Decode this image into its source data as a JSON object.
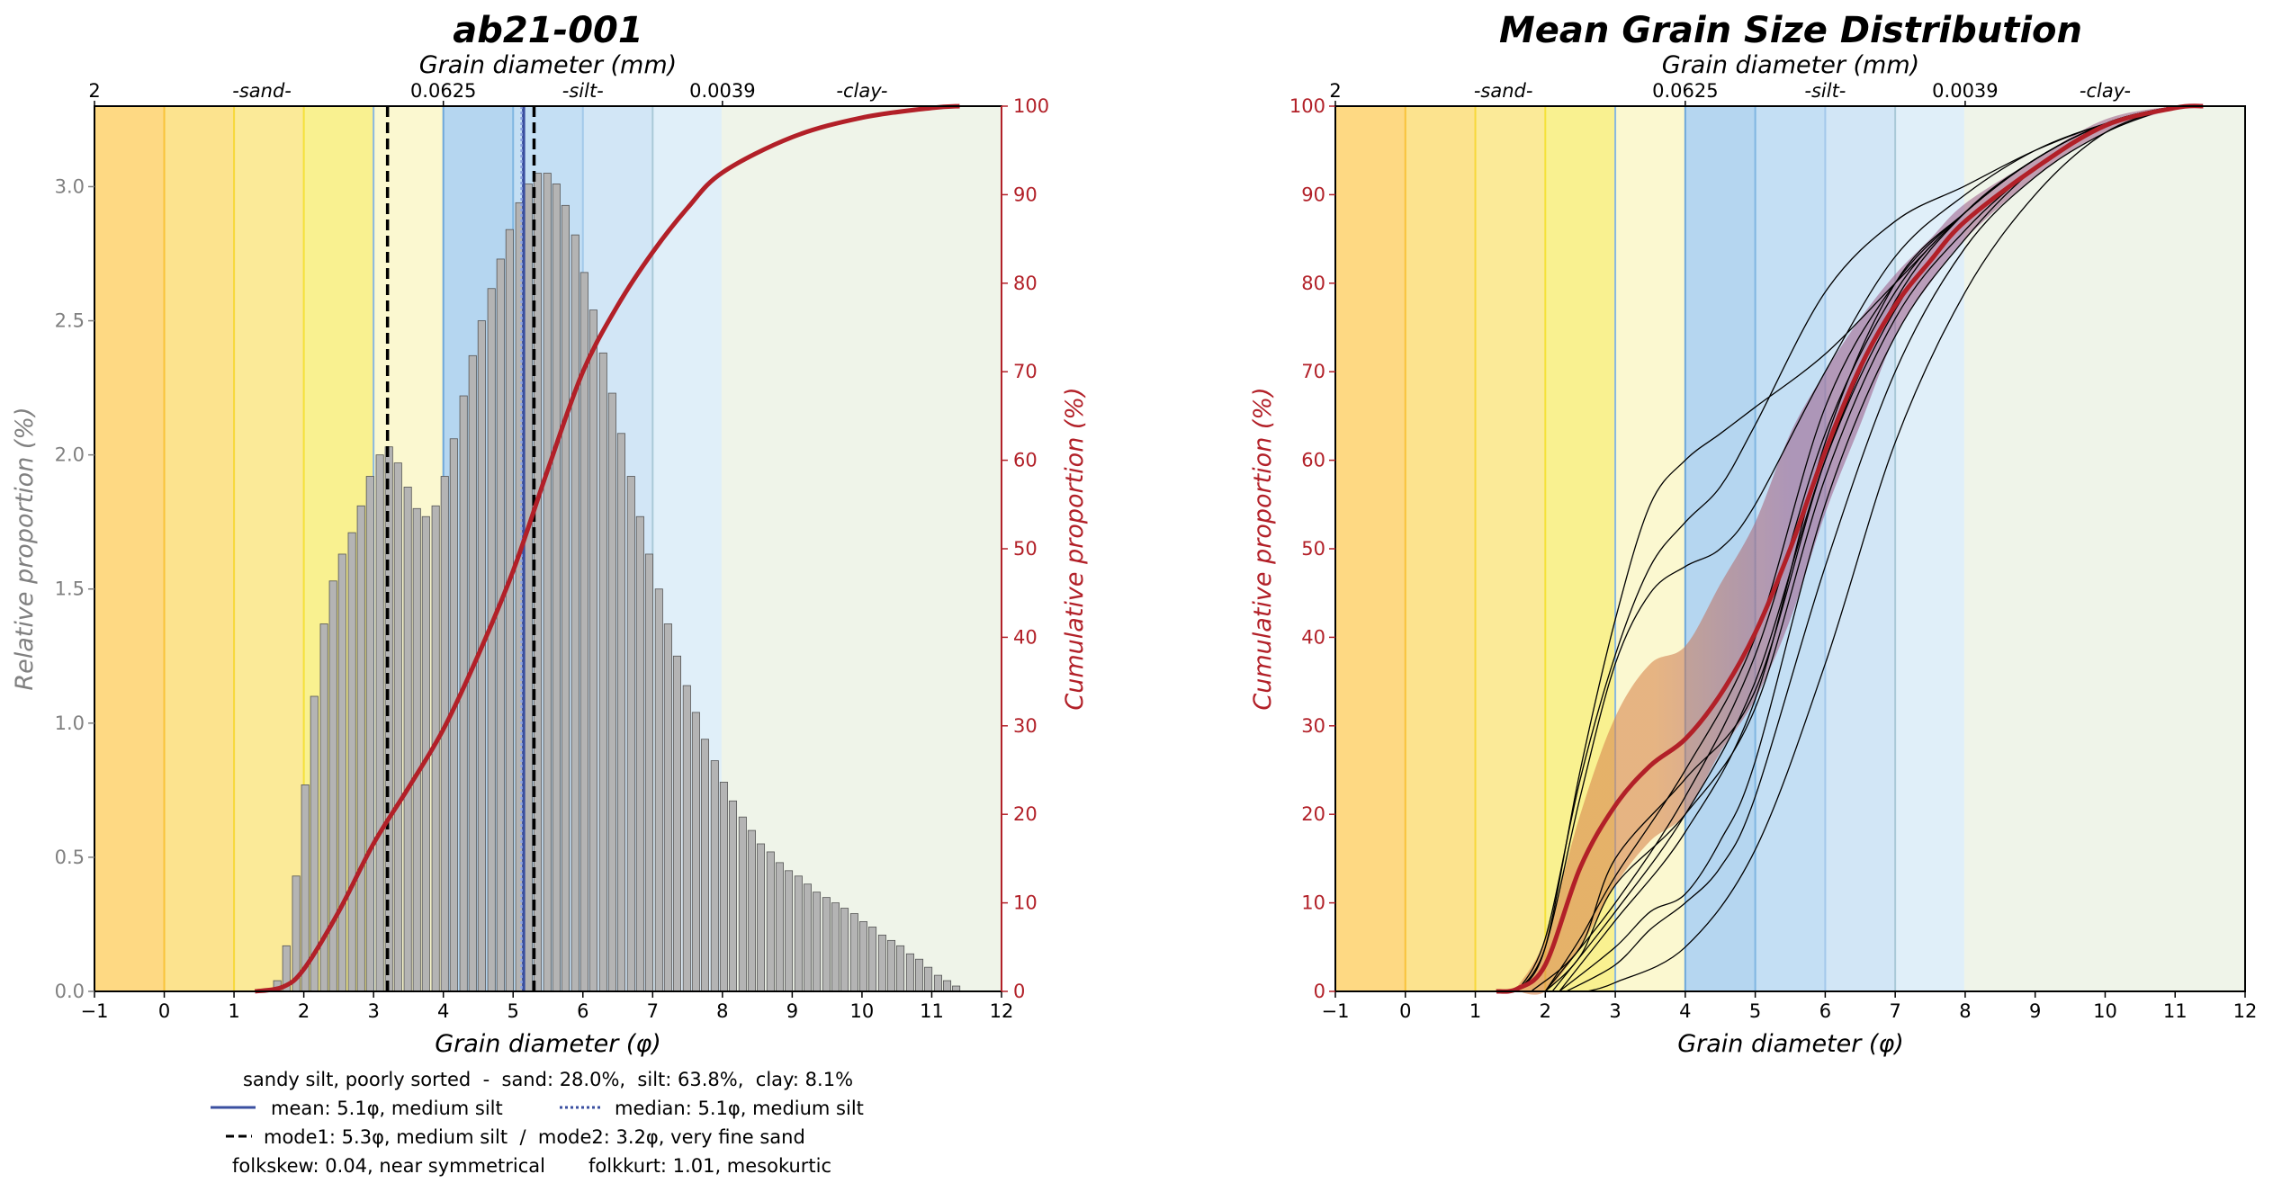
{
  "colors": {
    "cumulative": "#b22028",
    "relative_axis": "#808080",
    "bar_fill": "#b4b4b4",
    "bar_edge": "#555555",
    "mean_line": "#3a4fa0",
    "median_line": "#3a4fa0",
    "mode_line": "#000000",
    "band_sand": "#d8874f",
    "band_silt": "#9a5a86",
    "sample_lines": "#000000",
    "size_classes": [
      {
        "from": -1,
        "to": 0,
        "fill": "#fed983",
        "edge": "#f9c33a"
      },
      {
        "from": 0,
        "to": 1,
        "fill": "#fce38e",
        "edge": "#f9c33a"
      },
      {
        "from": 1,
        "to": 2,
        "fill": "#fbea98",
        "edge": "#f7d83a"
      },
      {
        "from": 2,
        "to": 3,
        "fill": "#f9f190",
        "edge": "#f5e13a"
      },
      {
        "from": 3,
        "to": 4,
        "fill": "#fbf8d0",
        "edge": "#8ab8e0"
      },
      {
        "from": 4,
        "to": 5,
        "fill": "#b5d6f0",
        "edge": "#6fa8d9"
      },
      {
        "from": 5,
        "to": 6,
        "fill": "#c4dff4",
        "edge": "#80b6e2"
      },
      {
        "from": 6,
        "to": 7,
        "fill": "#d2e6f6",
        "edge": "#a3c9ea"
      },
      {
        "from": 7,
        "to": 8,
        "fill": "#e0eff9",
        "edge": "#a9c9d8"
      },
      {
        "from": 8,
        "to": 12,
        "fill": "#eff4e9",
        "edge": "#eff4e9"
      }
    ]
  },
  "chart_data": [
    {
      "type": "bar",
      "title": "ab21-001",
      "xlabel": "Grain diameter (φ)",
      "ylabel": "Relative proportion (%)",
      "y2label": "Cumulative proportion (%)",
      "top_axis_label": "Grain diameter (mm)",
      "top_axis_labels": [
        {
          "phi": -1,
          "text": "2",
          "italic": false
        },
        {
          "phi": 1.4,
          "text": "-sand-",
          "italic": true
        },
        {
          "phi": 4,
          "text": "0.0625",
          "italic": false
        },
        {
          "phi": 6,
          "text": "-silt-",
          "italic": true
        },
        {
          "phi": 8,
          "text": "0.0039",
          "italic": false
        },
        {
          "phi": 10,
          "text": "-clay-",
          "italic": true
        }
      ],
      "xlim": [
        -1,
        12
      ],
      "ylim": [
        0,
        3.3
      ],
      "y2lim": [
        0,
        100
      ],
      "xticks": [
        "−1",
        "0",
        "1",
        "2",
        "3",
        "4",
        "5",
        "6",
        "7",
        "8",
        "9",
        "10",
        "11",
        "12"
      ],
      "yticks": [
        "0.0",
        "0.5",
        "1.0",
        "1.5",
        "2.0",
        "2.5",
        "3.0"
      ],
      "y2ticks": [
        "0",
        "10",
        "20",
        "30",
        "40",
        "50",
        "60",
        "70",
        "80",
        "90",
        "100"
      ],
      "bars": {
        "x": [
          1.62,
          1.75,
          1.89,
          2.02,
          2.15,
          2.29,
          2.42,
          2.55,
          2.69,
          2.82,
          2.95,
          3.09,
          3.22,
          3.35,
          3.49,
          3.62,
          3.75,
          3.89,
          4.02,
          4.15,
          4.29,
          4.42,
          4.55,
          4.69,
          4.82,
          4.95,
          5.09,
          5.22,
          5.35,
          5.49,
          5.62,
          5.75,
          5.89,
          6.02,
          6.15,
          6.29,
          6.42,
          6.55,
          6.69,
          6.82,
          6.95,
          7.09,
          7.22,
          7.35,
          7.49,
          7.62,
          7.75,
          7.89,
          8.02,
          8.15,
          8.29,
          8.42,
          8.55,
          8.69,
          8.82,
          8.95,
          9.09,
          9.22,
          9.35,
          9.49,
          9.62,
          9.75,
          9.89,
          10.02,
          10.15,
          10.29,
          10.42,
          10.55,
          10.69,
          10.82,
          10.95,
          11.09,
          11.22,
          11.35
        ],
        "values": [
          0.04,
          0.17,
          0.43,
          0.77,
          1.1,
          1.37,
          1.53,
          1.63,
          1.71,
          1.81,
          1.92,
          2.0,
          2.03,
          1.97,
          1.88,
          1.8,
          1.77,
          1.81,
          1.92,
          2.06,
          2.22,
          2.37,
          2.5,
          2.62,
          2.73,
          2.84,
          2.94,
          3.01,
          3.05,
          3.05,
          3.01,
          2.93,
          2.82,
          2.68,
          2.54,
          2.38,
          2.23,
          2.08,
          1.92,
          1.77,
          1.63,
          1.5,
          1.37,
          1.25,
          1.14,
          1.04,
          0.94,
          0.86,
          0.78,
          0.71,
          0.65,
          0.6,
          0.55,
          0.52,
          0.48,
          0.45,
          0.43,
          0.4,
          0.37,
          0.35,
          0.33,
          0.31,
          0.29,
          0.26,
          0.24,
          0.21,
          0.19,
          0.17,
          0.14,
          0.12,
          0.09,
          0.06,
          0.04,
          0.02
        ]
      },
      "cumulative": {
        "x": [
          1.3,
          1.7,
          2,
          2.5,
          3,
          3.5,
          4,
          4.5,
          5,
          5.5,
          6,
          6.5,
          7,
          7.5,
          8,
          9,
          10,
          11,
          11.4
        ],
        "y": [
          0,
          0.5,
          2.5,
          9,
          16.7,
          23,
          29.6,
          38,
          47.5,
          59,
          70,
          77.5,
          83.5,
          88.5,
          92.5,
          96.5,
          98.7,
          99.8,
          100
        ]
      },
      "markers": {
        "mean": 5.15,
        "median": 5.12,
        "mode1": 5.3,
        "mode2": 3.2
      },
      "stats": {
        "summary": "sandy silt, poorly sorted  -  sand: 28.0%,  silt: 63.8%,  clay: 8.1%",
        "mean": "mean: 5.1φ, medium silt",
        "median": "median: 5.1φ, medium silt",
        "modes": "mode1: 5.3φ, medium silt  /  mode2: 3.2φ, very fine sand",
        "skew": "folkskew: 0.04, near symmetrical",
        "kurt": "folkkurt: 1.01, mesokurtic"
      }
    },
    {
      "type": "line",
      "title": "Mean Grain Size Distribution",
      "xlabel": "Grain diameter (φ)",
      "ylabel": "Cumulative proportion (%)",
      "top_axis_label": "Grain diameter (mm)",
      "top_axis_labels": [
        {
          "phi": -1,
          "text": "2",
          "italic": false
        },
        {
          "phi": 1.4,
          "text": "-sand-",
          "italic": true
        },
        {
          "phi": 4,
          "text": "0.0625",
          "italic": false
        },
        {
          "phi": 6,
          "text": "-silt-",
          "italic": true
        },
        {
          "phi": 8,
          "text": "0.0039",
          "italic": false
        },
        {
          "phi": 10,
          "text": "-clay-",
          "italic": true
        }
      ],
      "xlim": [
        -1,
        12
      ],
      "ylim": [
        0,
        100
      ],
      "xticks": [
        "−1",
        "0",
        "1",
        "2",
        "3",
        "4",
        "5",
        "6",
        "7",
        "8",
        "9",
        "10",
        "11",
        "12"
      ],
      "yticks": [
        "0",
        "10",
        "20",
        "30",
        "40",
        "50",
        "60",
        "70",
        "80",
        "90",
        "100"
      ],
      "mean": {
        "x": [
          1.3,
          1.6,
          2,
          2.5,
          3,
          3.5,
          4,
          4.5,
          5,
          5.5,
          6,
          6.5,
          7,
          7.5,
          8,
          9,
          10,
          11,
          11.4
        ],
        "y": [
          0,
          0.3,
          3,
          14,
          21,
          25.5,
          28.5,
          33.5,
          40.5,
          50,
          61,
          70.5,
          77.5,
          82.5,
          87,
          93,
          97.8,
          99.8,
          100
        ]
      },
      "band": {
        "x": [
          1.6,
          2,
          2.5,
          3,
          3.5,
          4,
          4.5,
          5,
          5.5,
          6,
          6.5,
          7,
          7.5,
          8,
          9,
          10,
          11,
          11.4
        ],
        "lower": [
          0,
          0,
          5,
          12,
          17,
          20,
          27,
          33,
          42,
          54,
          64,
          74,
          80,
          85,
          92,
          97,
          99.7,
          100
        ],
        "upper": [
          0.5,
          6,
          20,
          31,
          37,
          39,
          46,
          53,
          63,
          70,
          76,
          81,
          85,
          89,
          94,
          98.5,
          100,
          100
        ]
      },
      "samples": [
        {
          "x": [
            1.6,
            2,
            2.5,
            3,
            3.5,
            4,
            4.5,
            5,
            6,
            7,
            8,
            9,
            10,
            11
          ],
          "y": [
            0,
            5,
            25,
            42,
            55,
            60,
            63,
            66,
            72,
            80,
            88,
            94,
            98,
            100
          ]
        },
        {
          "x": [
            1.6,
            2,
            2.5,
            3,
            3.5,
            4,
            4.5,
            5,
            6,
            7,
            8,
            9,
            10,
            11
          ],
          "y": [
            0,
            6,
            24,
            38,
            48,
            53,
            57,
            64,
            79,
            87,
            91,
            95,
            98,
            100
          ]
        },
        {
          "x": [
            1.6,
            2,
            2.5,
            3,
            3.5,
            4,
            4.5,
            5,
            6,
            7,
            8,
            9,
            10,
            11
          ],
          "y": [
            0,
            5,
            22,
            37,
            45,
            48,
            50,
            55,
            70,
            83,
            90,
            95,
            98,
            100
          ]
        },
        {
          "x": [
            1.8,
            2.5,
            3,
            4,
            5,
            6,
            7,
            8,
            9,
            10,
            11
          ],
          "y": [
            0,
            5,
            15,
            24,
            34,
            60,
            78,
            88,
            94,
            98,
            100
          ]
        },
        {
          "x": [
            2,
            2.5,
            3,
            4,
            5,
            6,
            7,
            8,
            9,
            10,
            11
          ],
          "y": [
            0,
            4,
            12,
            20,
            32,
            58,
            76,
            86,
            93,
            98,
            100
          ]
        },
        {
          "x": [
            2.2,
            3,
            4,
            5,
            6,
            7,
            8,
            9,
            10,
            11
          ],
          "y": [
            0,
            8,
            18,
            33,
            62,
            80,
            88,
            94,
            98,
            100
          ]
        },
        {
          "x": [
            2.3,
            3,
            3.5,
            4,
            4.5,
            5,
            6,
            7,
            8,
            9,
            10,
            11
          ],
          "y": [
            0,
            3,
            7,
            10,
            14,
            22,
            48,
            70,
            84,
            92,
            97,
            100
          ]
        },
        {
          "x": [
            2.2,
            3,
            3.5,
            4,
            4.5,
            5,
            6,
            7,
            8,
            9,
            10,
            11
          ],
          "y": [
            0,
            5,
            9,
            11,
            17,
            26,
            55,
            74,
            85,
            93,
            98,
            100
          ]
        },
        {
          "x": [
            2.6,
            3,
            4,
            5,
            6,
            7,
            8,
            9,
            10,
            11
          ],
          "y": [
            0,
            1,
            5,
            16,
            37,
            62,
            79,
            90,
            97,
            100
          ]
        },
        {
          "x": [
            2,
            3,
            4,
            5,
            6,
            7,
            8,
            9,
            10,
            11
          ],
          "y": [
            0,
            10,
            22,
            38,
            63,
            79,
            88,
            94,
            98,
            100
          ]
        },
        {
          "x": [
            2,
            2.5,
            3,
            4,
            5,
            6,
            7,
            8,
            9,
            10,
            11
          ],
          "y": [
            0,
            6,
            13,
            25,
            40,
            66,
            80,
            88,
            94,
            98,
            100
          ]
        },
        {
          "x": [
            2.1,
            3,
            4,
            5,
            6,
            7,
            8,
            9,
            10,
            11
          ],
          "y": [
            0,
            9,
            20,
            35,
            60,
            77,
            87,
            93,
            98,
            100
          ]
        }
      ]
    }
  ]
}
